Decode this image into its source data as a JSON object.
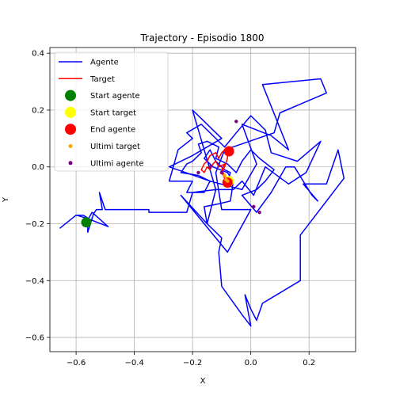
{
  "chart_data": {
    "type": "line",
    "title": "Trajectory - Episodio 1800",
    "xlabel": "X",
    "ylabel": "Y",
    "xlim": [
      -0.69,
      0.36
    ],
    "ylim": [
      -0.65,
      0.42
    ],
    "grid": true,
    "legend_position": "top-left",
    "x_ticks": [
      -0.6,
      -0.4,
      -0.2,
      0.0,
      0.2
    ],
    "x_tick_labels": [
      "−0.6",
      "−0.4",
      "−0.2",
      "0.0",
      "0.2"
    ],
    "y_ticks": [
      0.4,
      0.2,
      0.0,
      -0.2,
      -0.4,
      -0.6
    ],
    "y_tick_labels": [
      "0.4",
      "0.2",
      "0.0",
      "−0.2",
      "−0.4",
      "−0.6"
    ],
    "series": [
      {
        "name": "Agente",
        "kind": "line",
        "color": "#0000ff",
        "points": [
          [
            -0.565,
            -0.195
          ],
          [
            -0.545,
            -0.16
          ],
          [
            -0.49,
            -0.21
          ],
          [
            -0.565,
            -0.18
          ],
          [
            -0.6,
            -0.17
          ],
          [
            -0.655,
            -0.215
          ],
          [
            -0.6,
            -0.17
          ],
          [
            -0.575,
            -0.17
          ],
          [
            -0.56,
            -0.18
          ],
          [
            -0.56,
            -0.23
          ],
          [
            -0.54,
            -0.165
          ],
          [
            -0.53,
            -0.15
          ],
          [
            -0.51,
            -0.15
          ],
          [
            -0.52,
            -0.09
          ],
          [
            -0.5,
            -0.15
          ],
          [
            -0.35,
            -0.15
          ],
          [
            -0.35,
            -0.16
          ],
          [
            -0.22,
            -0.16
          ],
          [
            -0.2,
            -0.09
          ],
          [
            -0.12,
            -0.08
          ],
          [
            -0.2,
            0.2
          ],
          [
            -0.1,
            0.1
          ],
          [
            -0.2,
            0.04
          ],
          [
            -0.28,
            0.0
          ],
          [
            -0.14,
            -0.05
          ],
          [
            -0.03,
            -0.08
          ],
          [
            0.02,
            0.01
          ],
          [
            -0.03,
            0.15
          ],
          [
            0.07,
            0.11
          ],
          [
            0.13,
            0.06
          ],
          [
            0.04,
            0.29
          ],
          [
            0.24,
            0.31
          ],
          [
            0.26,
            0.26
          ],
          [
            0.1,
            0.19
          ],
          [
            0.08,
            0.12
          ],
          [
            -0.09,
            0.06
          ],
          [
            -0.12,
            -0.02
          ],
          [
            -0.1,
            -0.15
          ],
          [
            0.0,
            -0.15
          ],
          [
            -0.08,
            -0.3
          ],
          [
            -0.24,
            -0.1
          ],
          [
            -0.15,
            -0.2
          ],
          [
            -0.12,
            -0.08
          ],
          [
            -0.06,
            -0.08
          ],
          [
            -0.03,
            -0.05
          ],
          [
            0.01,
            -0.1
          ],
          [
            0.05,
            0.0
          ],
          [
            0.13,
            -0.06
          ],
          [
            0.19,
            -0.02
          ],
          [
            0.24,
            0.09
          ],
          [
            0.16,
            0.02
          ],
          [
            0.07,
            0.05
          ],
          [
            0.05,
            0.13
          ],
          [
            0.0,
            0.18
          ],
          [
            -0.05,
            0.12
          ],
          [
            -0.09,
            0.07
          ],
          [
            -0.17,
            0.15
          ],
          [
            -0.22,
            0.12
          ],
          [
            -0.2,
            0.1
          ],
          [
            -0.25,
            0.06
          ],
          [
            -0.28,
            -0.05
          ],
          [
            -0.2,
            -0.05
          ],
          [
            -0.22,
            -0.09
          ],
          [
            -0.16,
            -0.09
          ],
          [
            -0.14,
            -0.05
          ],
          [
            -0.18,
            -0.03
          ],
          [
            -0.24,
            -0.02
          ],
          [
            -0.22,
            0.01
          ],
          [
            -0.2,
            0.02
          ],
          [
            -0.17,
            0.05
          ],
          [
            -0.18,
            0.08
          ],
          [
            -0.15,
            0.09
          ],
          [
            -0.11,
            0.07
          ],
          [
            -0.12,
            0.03
          ],
          [
            -0.08,
            0.01
          ],
          [
            -0.05,
            -0.02
          ],
          [
            -0.03,
            0.02
          ],
          [
            0.0,
            0.06
          ],
          [
            0.03,
            0.03
          ],
          [
            0.08,
            -0.01
          ],
          [
            0.05,
            -0.05
          ],
          [
            0.02,
            -0.08
          ],
          [
            -0.03,
            -0.1
          ],
          [
            0.02,
            -0.16
          ],
          [
            0.07,
            -0.09
          ],
          [
            0.12,
            0.0
          ],
          [
            0.15,
            0.0
          ],
          [
            0.21,
            -0.1
          ],
          [
            0.23,
            -0.12
          ],
          [
            0.18,
            -0.06
          ],
          [
            0.26,
            -0.06
          ],
          [
            0.3,
            0.06
          ],
          [
            0.32,
            -0.04
          ],
          [
            0.17,
            -0.24
          ],
          [
            0.17,
            -0.4
          ],
          [
            0.04,
            -0.48
          ],
          [
            0.02,
            -0.54
          ],
          [
            0.0,
            -0.5
          ],
          [
            -0.02,
            -0.45
          ],
          [
            0.0,
            -0.56
          ],
          [
            -0.03,
            -0.52
          ],
          [
            -0.1,
            -0.42
          ],
          [
            -0.11,
            -0.3
          ],
          [
            -0.1,
            -0.25
          ],
          [
            -0.15,
            -0.2
          ],
          [
            -0.16,
            -0.14
          ],
          [
            -0.11,
            -0.13
          ],
          [
            -0.07,
            -0.12
          ],
          [
            -0.06,
            -0.05
          ],
          [
            -0.08,
            -0.02
          ],
          [
            -0.13,
            0.0
          ],
          [
            -0.16,
            0.03
          ],
          [
            -0.14,
            0.06
          ],
          [
            -0.12,
            0.02
          ],
          [
            -0.09,
            -0.01
          ],
          [
            -0.07,
            -0.02
          ],
          [
            -0.08,
            -0.05
          ]
        ]
      },
      {
        "name": "Target",
        "kind": "line",
        "color": "#ff0000",
        "points": [
          [
            -0.075,
            -0.05
          ],
          [
            -0.09,
            -0.03
          ],
          [
            -0.1,
            -0.01
          ],
          [
            -0.09,
            0.01
          ],
          [
            -0.11,
            0.0
          ],
          [
            -0.12,
            0.02
          ],
          [
            -0.13,
            0.01
          ],
          [
            -0.14,
            -0.01
          ],
          [
            -0.15,
            0.0
          ],
          [
            -0.16,
            -0.02
          ],
          [
            -0.17,
            -0.01
          ],
          [
            -0.16,
            0.01
          ],
          [
            -0.15,
            0.02
          ],
          [
            -0.14,
            0.04
          ],
          [
            -0.12,
            0.05
          ],
          [
            -0.11,
            0.03
          ],
          [
            -0.1,
            0.05
          ],
          [
            -0.09,
            0.06
          ],
          [
            -0.08,
            0.05
          ],
          [
            -0.08,
            0.03
          ],
          [
            -0.09,
            0.0
          ],
          [
            -0.1,
            -0.02
          ],
          [
            -0.09,
            -0.04
          ],
          [
            -0.08,
            -0.06
          ],
          [
            -0.075,
            -0.05
          ]
        ]
      },
      {
        "name": "Start agente",
        "kind": "marker",
        "color": "#008000",
        "points": [
          [
            -0.565,
            -0.195
          ]
        ]
      },
      {
        "name": "Start target",
        "kind": "marker",
        "color": "#ffff00",
        "points": [
          [
            -0.075,
            -0.05
          ]
        ]
      },
      {
        "name": "End agente",
        "kind": "marker",
        "color": "#ff0000",
        "points": [
          [
            -0.075,
            0.055
          ],
          [
            -0.08,
            -0.055
          ]
        ]
      },
      {
        "name": "Ultimi target",
        "kind": "dots",
        "color": "#ffa500",
        "points": [
          [
            -0.08,
            -0.05
          ],
          [
            -0.09,
            -0.03
          ],
          [
            -0.085,
            -0.045
          ]
        ]
      },
      {
        "name": "Ultimi agente",
        "kind": "dots",
        "color": "#800080",
        "points": [
          [
            -0.18,
            -0.02
          ],
          [
            -0.14,
            0.0
          ],
          [
            -0.1,
            -0.02
          ],
          [
            -0.05,
            0.16
          ],
          [
            0.03,
            -0.16
          ],
          [
            0.01,
            -0.14
          ]
        ]
      }
    ]
  }
}
